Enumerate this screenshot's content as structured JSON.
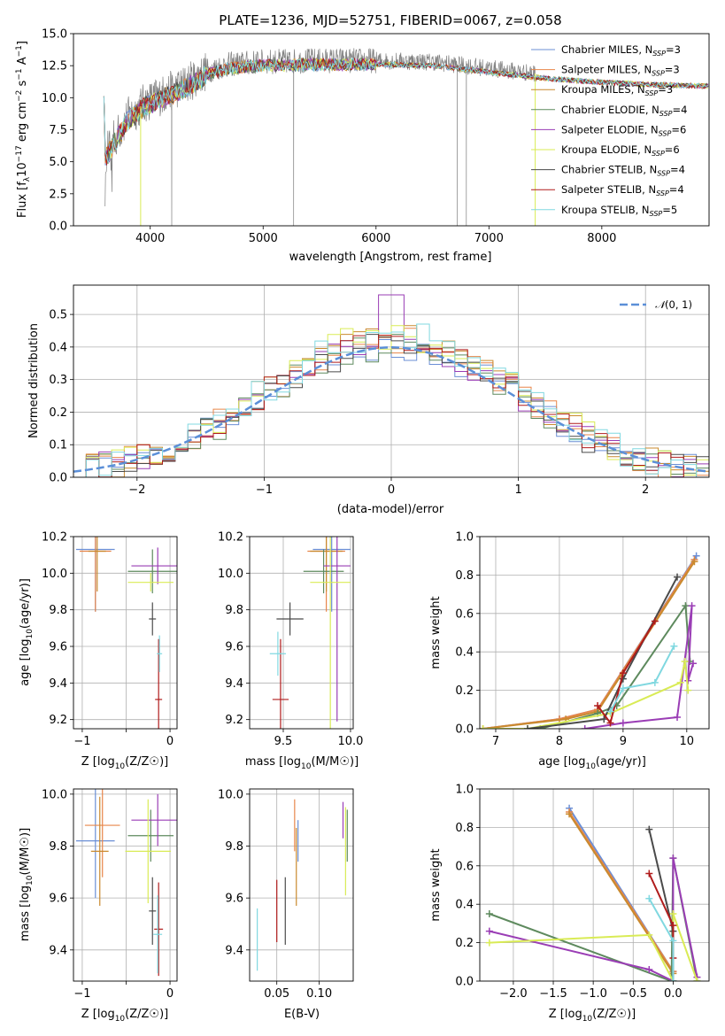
{
  "figure_title": "PLATE=1236, MJD=52751, FIBERID=0067, z=0.058",
  "colors": {
    "Chabrier MILES": "#6b8fd6",
    "Salpeter MILES": "#e8864a",
    "Kroupa MILES": "#c98a2e",
    "Chabrier ELODIE": "#5e8a5e",
    "Salpeter ELODIE": "#9a3db5",
    "Kroupa ELODIE": "#d9eb55",
    "Chabrier STELIB": "#4a4a4a",
    "Salpeter STELIB": "#b01c1c",
    "Kroupa STELIB": "#80d8e0"
  },
  "chart_data": [
    {
      "id": "spectrum",
      "type": "line",
      "title": "PLATE=1236, MJD=52751, FIBERID=0067, z=0.058",
      "xlabel": "wavelength [Angstrom, rest frame]",
      "ylabel": "Flux [f_λ 10^-17 erg cm^-2 s^-1 A^-1]",
      "xlim": [
        3320,
        8950
      ],
      "ylim": [
        0,
        15
      ],
      "xticks": [
        4000,
        5000,
        6000,
        7000,
        8000
      ],
      "yticks": [
        0.0,
        2.5,
        5.0,
        7.5,
        10.0,
        12.5,
        15.0
      ],
      "legend_position": "right",
      "legend": [
        {
          "base": "Chabrier MILES, N",
          "sub": "SSP",
          "tail": "=3"
        },
        {
          "base": "Salpeter MILES, N",
          "sub": "SSP",
          "tail": "=3"
        },
        {
          "base": "Kroupa MILES, N",
          "sub": "SSP",
          "tail": "=3"
        },
        {
          "base": "Chabrier ELODIE, N",
          "sub": "SSP",
          "tail": "=4"
        },
        {
          "base": "Salpeter ELODIE, N",
          "sub": "SSP",
          "tail": "=6"
        },
        {
          "base": "Kroupa ELODIE, N",
          "sub": "SSP",
          "tail": "=6"
        },
        {
          "base": "Chabrier STELIB, N",
          "sub": "SSP",
          "tail": "=4"
        },
        {
          "base": "Salpeter STELIB, N",
          "sub": "SSP",
          "tail": "=4"
        },
        {
          "base": "Kroupa STELIB, N",
          "sub": "SSP",
          "tail": "=5"
        }
      ],
      "continuum": [
        [
          3600,
          5.5
        ],
        [
          3700,
          7.0
        ],
        [
          3800,
          8.5
        ],
        [
          3950,
          9.6
        ],
        [
          4100,
          10.2
        ],
        [
          4300,
          11.0
        ],
        [
          4500,
          12.1
        ],
        [
          4700,
          12.6
        ],
        [
          5000,
          12.8
        ],
        [
          5500,
          12.9
        ],
        [
          6000,
          12.9
        ],
        [
          6500,
          12.8
        ],
        [
          7000,
          12.3
        ],
        [
          7500,
          11.8
        ],
        [
          8000,
          11.5
        ],
        [
          8500,
          11.3
        ],
        [
          8900,
          11.2
        ]
      ],
      "observed_spikes": [
        [
          4190,
          0.0
        ],
        [
          5270,
          0.0
        ],
        [
          6720,
          0.0
        ],
        [
          6800,
          0.0
        ]
      ],
      "model_spikes": [
        [
          3915,
          0.0
        ],
        [
          7410,
          0.0
        ]
      ]
    },
    {
      "id": "residuals",
      "type": "histogram",
      "xlabel": "(data-model)/error",
      "ylabel": "Normed distribution",
      "xlim": [
        -2.5,
        2.5
      ],
      "ylim": [
        0,
        0.59
      ],
      "xticks": [
        -2,
        -1,
        0,
        1,
        2
      ],
      "yticks": [
        0.0,
        0.1,
        0.2,
        0.3,
        0.4,
        0.5
      ],
      "bin_width": 0.1,
      "reference": {
        "label": "N(0,1)",
        "label_main": "𝒩",
        "label_args": "(0, 1)",
        "color": "#5b8fd8"
      },
      "legend_position": "top-right"
    },
    {
      "id": "age-vs-Z",
      "type": "errorbar",
      "xlabel_pre": "Z [log",
      "xlabel_sub": "10",
      "xlabel_post": "(Z/Z☉)]",
      "ylabel_pre": "age  [log",
      "ylabel_sub": "10",
      "ylabel_post": "(age/yr)]",
      "xlim": [
        -1.1,
        0.08
      ],
      "ylim": [
        9.15,
        10.2
      ],
      "xticks": [
        -1,
        -0.5,
        0
      ],
      "xtick_labels": [
        "−1",
        "",
        "0"
      ],
      "yticks": [
        9.2,
        9.4,
        9.6,
        9.8,
        10.0,
        10.2
      ],
      "points": [
        {
          "model": "Chabrier MILES",
          "x": -0.85,
          "xerr": 0.22,
          "y": 10.13,
          "yerr": 0.34
        },
        {
          "model": "Salpeter MILES",
          "x": -0.85,
          "xerr": 0.18,
          "y": 10.12,
          "yerr": 0.33
        },
        {
          "model": "Kroupa MILES",
          "x": -0.83,
          "xerr": 0.1,
          "y": 10.12,
          "yerr": 0.22
        },
        {
          "model": "Chabrier ELODIE",
          "x": -0.2,
          "xerr": 0.28,
          "y": 10.01,
          "yerr": 0.12
        },
        {
          "model": "Salpeter ELODIE",
          "x": -0.14,
          "xerr": 0.3,
          "y": 10.04,
          "yerr": 0.1
        },
        {
          "model": "Kroupa ELODIE",
          "x": -0.22,
          "xerr": 0.26,
          "y": 9.95,
          "yerr": 0.05
        },
        {
          "model": "Chabrier STELIB",
          "x": -0.2,
          "xerr": 0.04,
          "y": 9.75,
          "yerr": 0.09
        },
        {
          "model": "Salpeter STELIB",
          "x": -0.13,
          "xerr": 0.04,
          "y": 9.31,
          "yerr": 0.33
        },
        {
          "model": "Kroupa STELIB",
          "x": -0.12,
          "xerr": 0.03,
          "y": 9.56,
          "yerr": 0.1
        }
      ]
    },
    {
      "id": "age-vs-mass",
      "type": "errorbar",
      "xlabel_pre": "mass [log",
      "xlabel_sub": "10",
      "xlabel_post": "(M/M☉)]",
      "xlim": [
        9.25,
        10.02
      ],
      "ylim": [
        9.15,
        10.2
      ],
      "xticks": [
        9.5,
        10.0
      ],
      "xtick_labels": [
        "9.5",
        "10.0"
      ],
      "yticks": [
        9.2,
        9.4,
        9.6,
        9.8,
        10.0,
        10.2
      ],
      "points": [
        {
          "model": "Chabrier MILES",
          "x": 9.86,
          "xerr": 0.14,
          "y": 10.13,
          "yerr": 0.34
        },
        {
          "model": "Salpeter MILES",
          "x": 9.82,
          "xerr": 0.14,
          "y": 10.12,
          "yerr": 0.33
        },
        {
          "model": "Kroupa MILES",
          "x": 9.82,
          "xerr": 0.12,
          "y": 10.12,
          "yerr": 0.22
        },
        {
          "model": "Chabrier ELODIE",
          "x": 9.8,
          "xerr": 0.15,
          "y": 10.01,
          "yerr": 0.12
        },
        {
          "model": "Salpeter ELODIE",
          "x": 9.9,
          "xerr": 0.1,
          "y": 10.04,
          "yerr": 0.85
        },
        {
          "model": "Kroupa ELODIE",
          "x": 9.85,
          "xerr": 0.15,
          "y": 9.95,
          "yerr": 0.85
        },
        {
          "model": "Chabrier STELIB",
          "x": 9.55,
          "xerr": 0.1,
          "y": 9.75,
          "yerr": 0.09
        },
        {
          "model": "Salpeter STELIB",
          "x": 9.48,
          "xerr": 0.06,
          "y": 9.31,
          "yerr": 0.33
        },
        {
          "model": "Kroupa STELIB",
          "x": 9.46,
          "xerr": 0.06,
          "y": 9.56,
          "yerr": 0.12
        }
      ]
    },
    {
      "id": "massweight-vs-age",
      "type": "line",
      "xlabel_pre": "age  [log",
      "xlabel_sub": "10",
      "xlabel_post": "(age/yr)]",
      "ylabel": "mass weight",
      "xlim": [
        6.75,
        10.35
      ],
      "ylim": [
        0,
        1
      ],
      "xticks": [
        7,
        8,
        9,
        10
      ],
      "yticks": [
        0.0,
        0.2,
        0.4,
        0.6,
        0.8,
        1.0
      ],
      "series": [
        {
          "model": "Chabrier MILES",
          "x": [
            6.8,
            8.0,
            8.6,
            10.15
          ],
          "y": [
            0.0,
            0.05,
            0.1,
            0.9
          ]
        },
        {
          "model": "Salpeter MILES",
          "x": [
            6.8,
            8.0,
            8.6,
            10.12
          ],
          "y": [
            0.0,
            0.05,
            0.1,
            0.88
          ]
        },
        {
          "model": "Kroupa MILES",
          "x": [
            6.8,
            8.1,
            8.6,
            10.12
          ],
          "y": [
            0.0,
            0.05,
            0.09,
            0.87
          ]
        },
        {
          "model": "Chabrier ELODIE",
          "x": [
            7.7,
            8.6,
            8.9,
            9.98,
            10.05
          ],
          "y": [
            0.0,
            0.08,
            0.12,
            0.64,
            0.35
          ]
        },
        {
          "model": "Salpeter ELODIE",
          "x": [
            8.4,
            9.0,
            9.85,
            10.08,
            10.02,
            10.1
          ],
          "y": [
            0.0,
            0.03,
            0.06,
            0.64,
            0.25,
            0.34
          ]
        },
        {
          "model": "Kroupa ELODIE",
          "x": [
            6.8,
            7.5,
            8.8,
            9.9,
            9.97,
            10.02
          ],
          "y": [
            0.0,
            0.0,
            0.08,
            0.24,
            0.35,
            0.2
          ]
        },
        {
          "model": "Chabrier STELIB",
          "x": [
            7.5,
            8.7,
            9.0,
            9.85
          ],
          "y": [
            0.0,
            0.05,
            0.26,
            0.79
          ]
        },
        {
          "model": "Salpeter STELIB",
          "x": [
            8.6,
            8.8,
            9.0,
            9.5
          ],
          "y": [
            0.12,
            0.03,
            0.29,
            0.56
          ]
        },
        {
          "model": "Kroupa STELIB",
          "x": [
            8.8,
            9.0,
            9.5,
            9.8
          ],
          "y": [
            0.09,
            0.21,
            0.24,
            0.43
          ]
        }
      ]
    },
    {
      "id": "mass-vs-Z",
      "type": "errorbar",
      "xlabel_pre": "Z [log",
      "xlabel_sub": "10",
      "xlabel_post": "(Z/Z☉)]",
      "ylabel_pre": "mass [log",
      "ylabel_sub": "10",
      "ylabel_post": "(M/M☉)]",
      "xlim": [
        -1.1,
        0.08
      ],
      "ylim": [
        9.28,
        10.02
      ],
      "xticks": [
        -1,
        -0.5,
        0
      ],
      "xtick_labels": [
        "−1",
        "",
        "0"
      ],
      "yticks": [
        9.4,
        9.6,
        9.8,
        10.0
      ],
      "points": [
        {
          "model": "Chabrier MILES",
          "x": -0.85,
          "xerr": 0.22,
          "y": 9.82,
          "yerr": 0.22
        },
        {
          "model": "Salpeter MILES",
          "x": -0.77,
          "xerr": 0.2,
          "y": 9.88,
          "yerr": 0.2
        },
        {
          "model": "Kroupa MILES",
          "x": -0.8,
          "xerr": 0.1,
          "y": 9.78,
          "yerr": 0.21
        },
        {
          "model": "Chabrier ELODIE",
          "x": -0.22,
          "xerr": 0.26,
          "y": 9.84,
          "yerr": 0.1
        },
        {
          "model": "Salpeter ELODIE",
          "x": -0.14,
          "xerr": 0.3,
          "y": 9.9,
          "yerr": 0.1
        },
        {
          "model": "Kroupa ELODIE",
          "x": -0.25,
          "xerr": 0.26,
          "y": 9.78,
          "yerr": 0.2
        },
        {
          "model": "Chabrier STELIB",
          "x": -0.2,
          "xerr": 0.04,
          "y": 9.55,
          "yerr": 0.13
        },
        {
          "model": "Salpeter STELIB",
          "x": -0.13,
          "xerr": 0.05,
          "y": 9.48,
          "yerr": 0.18
        },
        {
          "model": "Kroupa STELIB",
          "x": -0.14,
          "xerr": 0.05,
          "y": 9.46,
          "yerr": 0.15
        }
      ]
    },
    {
      "id": "EBV",
      "type": "errorbar",
      "xlabel": "E(B-V)",
      "xlim": [
        0.018,
        0.14
      ],
      "ylim": [
        9.28,
        10.02
      ],
      "xticks": [
        0.05,
        0.1
      ],
      "xtick_labels": [
        "0.05",
        "0.10"
      ],
      "yticks": [
        9.4,
        9.6,
        9.8,
        10.0
      ],
      "points": [
        {
          "model": "Chabrier MILES",
          "x": 0.075,
          "y": 9.82,
          "yerr": 0.08
        },
        {
          "model": "Salpeter MILES",
          "x": 0.071,
          "y": 9.88,
          "yerr": 0.1
        },
        {
          "model": "Kroupa MILES",
          "x": 0.073,
          "y": 9.72,
          "yerr": 0.15
        },
        {
          "model": "Chabrier ELODIE",
          "x": 0.133,
          "y": 9.84,
          "yerr": 0.1
        },
        {
          "model": "Salpeter ELODIE",
          "x": 0.128,
          "y": 9.9,
          "yerr": 0.07
        },
        {
          "model": "Kroupa ELODIE",
          "x": 0.131,
          "y": 9.78,
          "yerr": 0.17
        },
        {
          "model": "Chabrier STELIB",
          "x": 0.06,
          "y": 9.55,
          "yerr": 0.13
        },
        {
          "model": "Salpeter STELIB",
          "x": 0.05,
          "y": 9.55,
          "yerr": 0.12
        },
        {
          "model": "Kroupa STELIB",
          "x": 0.027,
          "y": 9.44,
          "yerr": 0.12
        }
      ]
    },
    {
      "id": "massweight-vs-Z",
      "type": "line",
      "xlabel_pre": "Z [log",
      "xlabel_sub": "10",
      "xlabel_post": "(Z/Z☉)]",
      "ylabel": "mass weight",
      "xlim": [
        -2.42,
        0.45
      ],
      "ylim": [
        0,
        1
      ],
      "xticks": [
        -2.0,
        -1.5,
        -1.0,
        -0.5,
        0.0
      ],
      "xtick_labels": [
        "−2.0",
        "−1.5",
        "−1.0",
        "−0.5",
        "0.0"
      ],
      "yticks": [
        0.0,
        0.2,
        0.4,
        0.6,
        0.8,
        1.0
      ],
      "series": [
        {
          "model": "Chabrier MILES",
          "x": [
            -1.3,
            0.0,
            0.0
          ],
          "y": [
            0.9,
            0.05,
            0.0
          ]
        },
        {
          "model": "Salpeter MILES",
          "x": [
            -1.3,
            0.0,
            0.0
          ],
          "y": [
            0.88,
            0.05,
            0.0
          ]
        },
        {
          "model": "Kroupa MILES",
          "x": [
            -1.3,
            0.0,
            0.0
          ],
          "y": [
            0.87,
            0.04,
            0.0
          ]
        },
        {
          "model": "Chabrier ELODIE",
          "x": [
            -2.3,
            -0.02,
            0.0,
            0.3
          ],
          "y": [
            0.35,
            0.0,
            0.64,
            0.0
          ]
        },
        {
          "model": "Salpeter ELODIE",
          "x": [
            -2.3,
            -0.3,
            0.0,
            0.0,
            0.3
          ],
          "y": [
            0.26,
            0.06,
            0.0,
            0.64,
            0.02
          ]
        },
        {
          "model": "Kroupa ELODIE",
          "x": [
            -2.3,
            -0.3,
            0.0,
            0.0,
            0.3
          ],
          "y": [
            0.2,
            0.24,
            0.0,
            0.35,
            0.0
          ]
        },
        {
          "model": "Chabrier STELIB",
          "x": [
            -0.3,
            0.0,
            0.0
          ],
          "y": [
            0.79,
            0.26,
            0.0
          ]
        },
        {
          "model": "Salpeter STELIB",
          "x": [
            -0.3,
            0.0,
            0.0
          ],
          "y": [
            0.56,
            0.29,
            0.12
          ]
        },
        {
          "model": "Kroupa STELIB",
          "x": [
            -0.3,
            0.0,
            0.0
          ],
          "y": [
            0.43,
            0.21,
            0.0
          ]
        }
      ]
    }
  ]
}
